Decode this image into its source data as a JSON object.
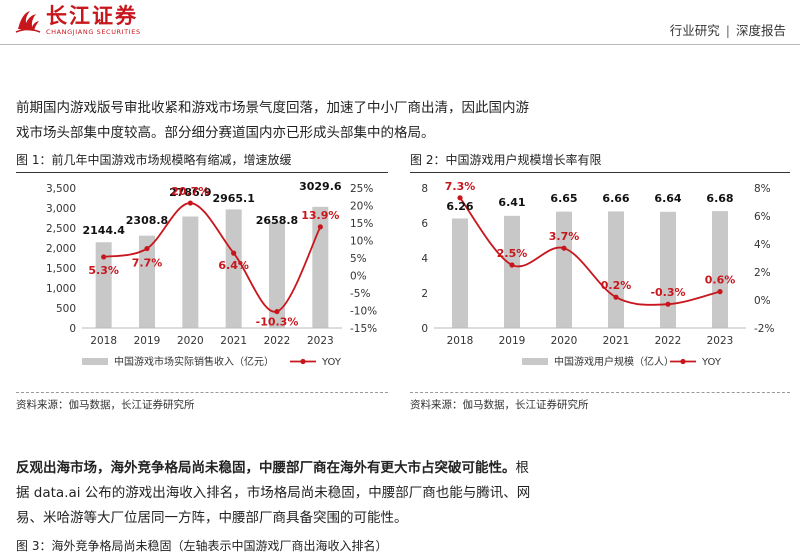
{
  "header": {
    "logo_cn": "长江证券",
    "logo_en": "CHANGJIANG SECURITIES",
    "section": "行业研究",
    "separator": "|",
    "report_type": "深度报告"
  },
  "paragraph1": {
    "line1": "前期国内游戏版号审批收紧和游戏市场景气度回落，加速了中小厂商出清，因此国内游",
    "line2": "戏市场头部集中度较高。部分细分赛道国内亦已形成头部集中的格局。"
  },
  "figure1": {
    "title": "图 1：前几年中国游戏市场规模略有缩减，增速放缓",
    "source": "资料来源：伽马数据，长江证券研究所"
  },
  "figure2": {
    "title": "图 2：中国游戏用户规模增长率有限",
    "source": "资料来源：伽马数据，长江证券研究所"
  },
  "paragraph2": {
    "bold": "反观出海市场，海外竞争格局尚未稳固，中腰部厂商在海外有更大市占突破可能性。",
    "line1_rest": "根",
    "line2": "据 data.ai 公布的游戏出海收入排名，市场格局尚未稳固，中腰部厂商也能与腾讯、网",
    "line3": "易、米哈游等大厂位居同一方阵，中腰部厂商具备突围的可能性。"
  },
  "figure3": {
    "title": "图 3：海外竞争格局尚未稳固（左轴表示中国游戏厂商出海收入排名）"
  },
  "colors": {
    "bar": "#c8c8c8",
    "line": "#c8161d",
    "brand": "#c8161d"
  },
  "chart_data": [
    {
      "type": "bar",
      "categories": [
        "2018",
        "2019",
        "2020",
        "2021",
        "2022",
        "2023"
      ],
      "series": [
        {
          "name": "中国游戏市场实际销售收入（亿元）",
          "type": "bar",
          "axis": "left",
          "values": [
            2144.4,
            2308.8,
            2786.9,
            2965.1,
            2658.8,
            3029.6
          ],
          "labels": [
            "2144.4",
            "2308.8",
            "2786.9",
            "2965.1",
            "2658.8",
            "3029.6"
          ]
        },
        {
          "name": "YOY",
          "type": "line",
          "axis": "right",
          "values": [
            5.3,
            7.7,
            20.7,
            6.4,
            -10.3,
            13.9
          ],
          "labels": [
            "5.3%",
            "7.7%",
            "20.7%",
            "6.4%",
            "-10.3%",
            "13.9%"
          ]
        }
      ],
      "ylim": [
        0,
        3500
      ],
      "yticks": [
        "0",
        "500",
        "1,000",
        "1,500",
        "2,000",
        "2,500",
        "3,000",
        "3,500"
      ],
      "y2lim": [
        -15,
        25
      ],
      "y2ticks": [
        "-15%",
        "-10%",
        "-5%",
        "0%",
        "5%",
        "10%",
        "15%",
        "20%",
        "25%"
      ],
      "grid": false,
      "legend": "bottom"
    },
    {
      "type": "bar",
      "categories": [
        "2018",
        "2019",
        "2020",
        "2021",
        "2022",
        "2023"
      ],
      "series": [
        {
          "name": "中国游戏用户规模（亿人）",
          "type": "bar",
          "axis": "left",
          "values": [
            6.26,
            6.41,
            6.65,
            6.66,
            6.64,
            6.68
          ],
          "labels": [
            "6.26",
            "6.41",
            "6.65",
            "6.66",
            "6.64",
            "6.68"
          ]
        },
        {
          "name": "YOY",
          "type": "line",
          "axis": "right",
          "values": [
            7.3,
            2.5,
            3.7,
            0.2,
            -0.3,
            0.6
          ],
          "labels": [
            "7.3%",
            "2.5%",
            "3.7%",
            "0.2%",
            "-0.3%",
            "0.6%"
          ]
        }
      ],
      "ylim": [
        0,
        8
      ],
      "yticks": [
        "0",
        "2",
        "4",
        "6",
        "8"
      ],
      "y2lim": [
        -2,
        8
      ],
      "y2ticks": [
        "-2%",
        "0%",
        "2%",
        "4%",
        "6%",
        "8%"
      ],
      "grid": false,
      "legend": "bottom"
    }
  ]
}
